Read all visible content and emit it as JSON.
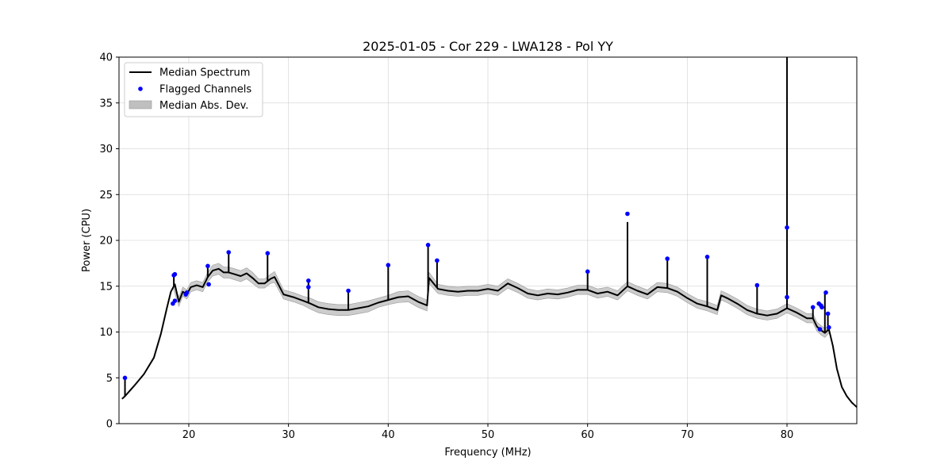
{
  "chart_data": {
    "type": "line",
    "title": "2025-01-05 - Cor 229 - LWA128 - Pol YY",
    "xlabel": "Frequency (MHz)",
    "ylabel": "Power (CPU)",
    "xlim": [
      13,
      87
    ],
    "ylim": [
      0,
      40
    ],
    "xticks": [
      20,
      30,
      40,
      50,
      60,
      70,
      80
    ],
    "yticks": [
      0,
      5,
      10,
      15,
      20,
      25,
      30,
      35,
      40
    ],
    "grid": true,
    "legend_position": "top-left",
    "legend": [
      {
        "label": "Median Spectrum",
        "kind": "line",
        "color": "#000000"
      },
      {
        "label": "Flagged Channels",
        "kind": "point",
        "color": "#0000ff"
      },
      {
        "label": "Median Abs. Dev.",
        "kind": "band",
        "color": "#bfbfbf"
      }
    ],
    "series": [
      {
        "name": "Median Spectrum",
        "color": "#000000",
        "x": [
          13.3,
          13.6,
          14.5,
          15.5,
          16.5,
          17.2,
          17.8,
          18.2,
          18.6,
          19.0,
          19.4,
          19.8,
          20.2,
          20.8,
          21.4,
          21.9,
          22.4,
          23.0,
          23.5,
          24.0,
          24.6,
          25.2,
          25.8,
          26.4,
          27.0,
          27.6,
          28.2,
          28.6,
          29.5,
          30.5,
          31.5,
          32.2,
          33.0,
          34.0,
          35.0,
          36.0,
          37.0,
          38.0,
          39.0,
          40.0,
          41.0,
          42.0,
          43.0,
          43.9,
          44.1,
          45.0,
          46.0,
          47.0,
          48.0,
          49.0,
          50.0,
          51.0,
          52.0,
          53.0,
          54.0,
          55.0,
          56.0,
          57.0,
          58.0,
          59.0,
          60.0,
          61.0,
          62.0,
          63.0,
          64.0,
          65.0,
          66.0,
          67.0,
          68.0,
          69.0,
          70.0,
          71.0,
          72.0,
          73.0,
          73.4,
          74.0,
          75.0,
          76.0,
          77.0,
          78.0,
          79.0,
          80.0,
          81.0,
          82.0,
          82.6,
          83.0,
          83.4,
          83.8,
          84.2,
          84.6,
          85.0,
          85.5,
          86.0,
          86.5,
          87.0
        ],
        "values": [
          2.7,
          3.0,
          4.1,
          5.4,
          7.2,
          9.8,
          12.6,
          14.4,
          15.2,
          13.3,
          14.4,
          14.1,
          14.9,
          15.1,
          14.9,
          16.0,
          16.7,
          16.9,
          16.5,
          16.5,
          16.3,
          16.1,
          16.4,
          15.9,
          15.3,
          15.3,
          15.8,
          16.0,
          14.1,
          13.8,
          13.4,
          13.1,
          12.7,
          12.5,
          12.4,
          12.4,
          12.6,
          12.8,
          13.2,
          13.5,
          13.8,
          13.9,
          13.3,
          12.9,
          15.9,
          14.7,
          14.5,
          14.4,
          14.5,
          14.5,
          14.7,
          14.5,
          15.3,
          14.8,
          14.2,
          14.0,
          14.2,
          14.1,
          14.3,
          14.6,
          14.6,
          14.2,
          14.4,
          14.0,
          15.0,
          14.5,
          14.1,
          14.9,
          14.8,
          14.4,
          13.7,
          13.1,
          12.8,
          12.4,
          14.0,
          13.7,
          13.1,
          12.4,
          12.0,
          11.8,
          12.0,
          12.6,
          12.1,
          11.5,
          11.5,
          10.6,
          10.2,
          9.9,
          10.3,
          8.5,
          6.0,
          4.0,
          3.0,
          2.3,
          1.8
        ]
      }
    ],
    "mad_band": {
      "x": [
        18.5,
        19.0,
        19.4,
        19.8,
        20.2,
        20.8,
        21.4,
        21.9,
        22.4,
        23.0,
        23.5,
        24.0,
        24.6,
        25.2,
        25.8,
        26.4,
        27.0,
        27.6,
        28.2,
        28.6,
        29.5,
        30.5,
        31.5,
        32.2,
        33.0,
        34.0,
        35.0,
        36.0,
        37.0,
        38.0,
        39.0,
        40.0,
        41.0,
        42.0,
        43.0,
        43.9,
        44.1,
        45.0,
        46.0,
        47.0,
        48.0,
        49.0,
        50.0,
        51.0,
        52.0,
        53.0,
        54.0,
        55.0,
        56.0,
        57.0,
        58.0,
        59.0,
        60.0,
        61.0,
        62.0,
        63.0,
        64.0,
        65.0,
        66.0,
        67.0,
        68.0,
        69.0,
        70.0,
        71.0,
        72.0,
        73.0,
        73.4,
        74.0,
        75.0,
        76.0,
        77.0,
        78.0,
        79.0,
        80.0,
        81.0,
        82.0,
        82.6,
        83.0,
        83.4,
        83.8,
        84.2
      ],
      "dev": [
        0.4,
        0.5,
        0.5,
        0.5,
        0.5,
        0.5,
        0.5,
        0.5,
        0.6,
        0.6,
        0.6,
        0.6,
        0.6,
        0.6,
        0.6,
        0.6,
        0.5,
        0.5,
        0.5,
        0.6,
        0.5,
        0.5,
        0.5,
        0.6,
        0.6,
        0.6,
        0.6,
        0.6,
        0.6,
        0.6,
        0.5,
        0.5,
        0.6,
        0.6,
        0.6,
        0.6,
        0.6,
        0.5,
        0.5,
        0.5,
        0.5,
        0.5,
        0.5,
        0.5,
        0.5,
        0.5,
        0.5,
        0.5,
        0.5,
        0.5,
        0.5,
        0.5,
        0.5,
        0.5,
        0.5,
        0.5,
        0.5,
        0.5,
        0.5,
        0.5,
        0.5,
        0.5,
        0.5,
        0.5,
        0.5,
        0.5,
        0.5,
        0.5,
        0.5,
        0.5,
        0.5,
        0.5,
        0.5,
        0.5,
        0.5,
        0.5,
        0.5,
        0.5,
        0.5,
        0.5,
        0.4
      ]
    },
    "spikes": [
      {
        "x": 13.6,
        "top": 5.0
      },
      {
        "x": 18.5,
        "top": 16.2
      },
      {
        "x": 19.8,
        "top": 14.5
      },
      {
        "x": 21.9,
        "top": 17.2
      },
      {
        "x": 24.0,
        "top": 18.5
      },
      {
        "x": 27.9,
        "top": 18.6
      },
      {
        "x": 32.0,
        "top": 15.5
      },
      {
        "x": 36.0,
        "top": 14.4
      },
      {
        "x": 40.0,
        "top": 17.3
      },
      {
        "x": 44.0,
        "top": 19.5
      },
      {
        "x": 44.9,
        "top": 17.7
      },
      {
        "x": 60.0,
        "top": 16.5
      },
      {
        "x": 64.0,
        "top": 22.0
      },
      {
        "x": 68.0,
        "top": 17.9
      },
      {
        "x": 72.0,
        "top": 18.1
      },
      {
        "x": 77.0,
        "top": 15.0
      },
      {
        "x": 80.0,
        "top": 40.0
      },
      {
        "x": 82.6,
        "top": 12.6
      },
      {
        "x": 83.8,
        "top": 14.2
      },
      {
        "x": 84.1,
        "top": 12.0
      }
    ],
    "flagged_channels": {
      "name": "Flagged Channels",
      "color": "#0000ff",
      "x": [
        13.6,
        18.4,
        18.5,
        18.6,
        18.6,
        19.7,
        19.8,
        21.9,
        22.0,
        24.0,
        27.9,
        32.0,
        32.0,
        36.0,
        40.0,
        44.0,
        44.9,
        60.0,
        64.0,
        68.0,
        72.0,
        77.0,
        80.0,
        80.0,
        82.6,
        83.2,
        83.3,
        83.4,
        83.5,
        83.9,
        84.1,
        84.2
      ],
      "y": [
        5.0,
        13.1,
        16.2,
        16.3,
        13.4,
        14.1,
        14.3,
        17.2,
        15.2,
        18.7,
        18.6,
        15.6,
        14.9,
        14.5,
        17.3,
        19.5,
        17.8,
        16.6,
        22.9,
        18.0,
        18.2,
        15.1,
        21.4,
        13.8,
        12.7,
        13.1,
        10.3,
        12.9,
        12.7,
        14.3,
        12.0,
        10.5
      ]
    }
  }
}
